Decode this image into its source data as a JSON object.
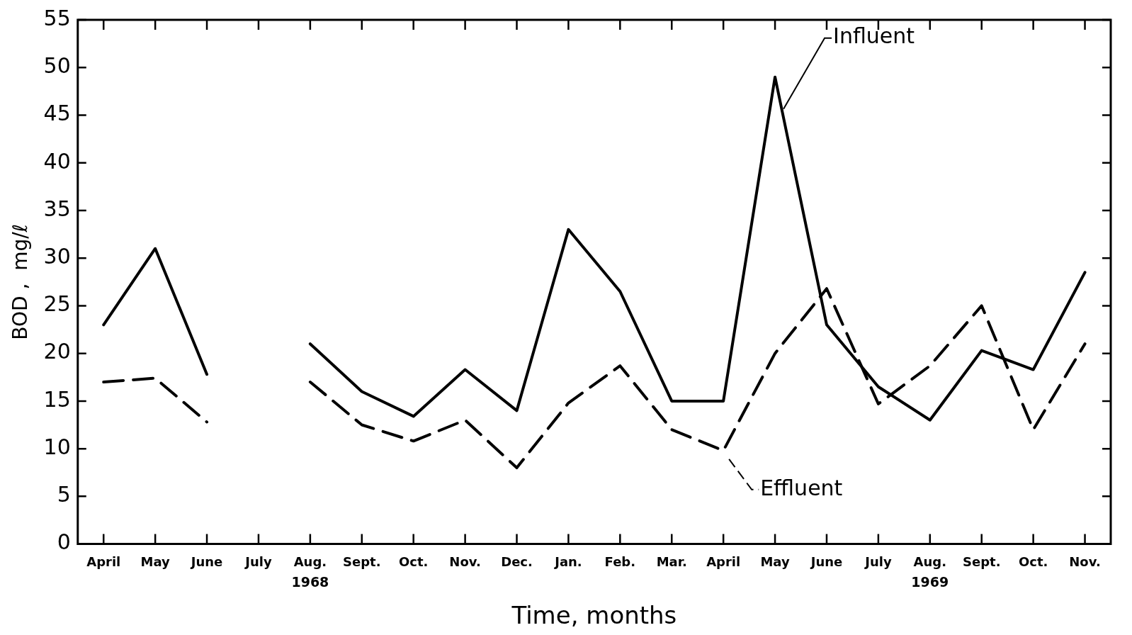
{
  "chart_data": {
    "type": "line",
    "xlabel": "Time, months",
    "ylabel": "BOD ,  mg/ℓ",
    "categories": [
      "April",
      "May",
      "June",
      "July",
      "Aug.",
      "Sept.",
      "Oct.",
      "Nov.",
      "Dec.",
      "Jan.",
      "Feb.",
      "Mar.",
      "April",
      "May",
      "June",
      "July",
      "Aug.",
      "Sept.",
      "Oct.",
      "Nov."
    ],
    "series": [
      {
        "name": "Influent",
        "color": "#000000",
        "line_style": "solid",
        "values": [
          23,
          31,
          17.8,
          null,
          21,
          16,
          13.4,
          18.3,
          14,
          33,
          26.5,
          15,
          15,
          49,
          23,
          16.5,
          13,
          20.3,
          18.3,
          28.5
        ]
      },
      {
        "name": "Effluent",
        "color": "#000000",
        "line_style": "dashed",
        "values": [
          17,
          17.4,
          12.8,
          null,
          17,
          12.5,
          10.8,
          13,
          8,
          14.8,
          18.7,
          12,
          9.8,
          20,
          26.8,
          14.7,
          18.7,
          25,
          12,
          21
        ]
      }
    ],
    "ylim": [
      0,
      55
    ],
    "yticks": [
      0,
      5,
      10,
      15,
      20,
      25,
      30,
      35,
      40,
      45,
      50,
      55
    ],
    "grid": false,
    "legend": "top right",
    "marker": "none",
    "annotations": [
      "1968",
      "1969"
    ]
  }
}
